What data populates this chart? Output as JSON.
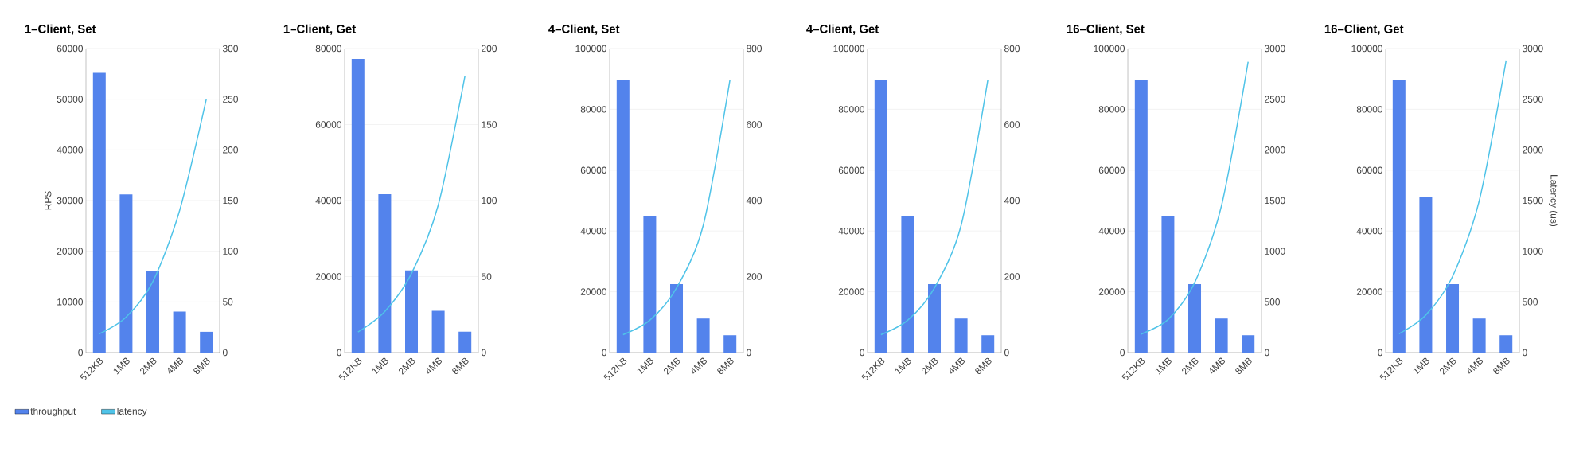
{
  "chart_data": [
    {
      "type": "bar",
      "title": "1–Client, Set",
      "categories": [
        "512KB",
        "1MB",
        "2MB",
        "4MB",
        "8MB"
      ],
      "ylabel": "RPS",
      "grid": "y",
      "legend": "bottom",
      "series": [
        {
          "name": "throughput",
          "color": "#5383ec",
          "values": [
            55200,
            31200,
            16100,
            8100,
            4100
          ]
        },
        {
          "name": "latency",
          "type": "line",
          "axis": "y2",
          "color": "#4fc3e8",
          "values": [
            18.5,
            35,
            70,
            140,
            250
          ]
        }
      ],
      "ylim": [
        0,
        60000
      ],
      "yticks": [
        0,
        10000,
        20000,
        30000,
        40000,
        50000,
        60000
      ],
      "y2lim": [
        0,
        300
      ],
      "y2ticks": [
        0,
        50,
        100,
        150,
        200,
        250,
        300
      ]
    },
    {
      "type": "bar",
      "title": "1–Client, Get",
      "categories": [
        "512KB",
        "1MB",
        "2MB",
        "4MB",
        "8MB"
      ],
      "grid": "y",
      "series": [
        {
          "color": "#5383ec",
          "values": [
            77300,
            41700,
            21600,
            11000,
            5500
          ]
        },
        {
          "type": "line",
          "axis": "y2",
          "color": "#4fc3e8",
          "values": [
            13.5,
            27,
            52,
            97,
            182
          ]
        }
      ],
      "ylim": [
        0,
        80000
      ],
      "yticks": [
        0,
        20000,
        40000,
        60000,
        80000
      ],
      "y2lim": [
        0,
        200
      ],
      "y2ticks": [
        0,
        50,
        100,
        150,
        200
      ]
    },
    {
      "type": "bar",
      "title": "4–Client, Set",
      "categories": [
        "512KB",
        "1MB",
        "2MB",
        "4MB",
        "8MB"
      ],
      "grid": "y",
      "series": [
        {
          "color": "#5383ec",
          "values": [
            89800,
            45000,
            22500,
            11200,
            5700
          ]
        },
        {
          "type": "line",
          "axis": "y2",
          "color": "#4fc3e8",
          "values": [
            47,
            85,
            170,
            335,
            718
          ]
        }
      ],
      "ylim": [
        0,
        100000
      ],
      "yticks": [
        0,
        20000,
        40000,
        60000,
        80000,
        100000
      ],
      "y2lim": [
        0,
        800
      ],
      "y2ticks": [
        0,
        200,
        400,
        600,
        800
      ]
    },
    {
      "type": "bar",
      "title": "4–Client, Get",
      "categories": [
        "512KB",
        "1MB",
        "2MB",
        "4MB",
        "8MB"
      ],
      "grid": "y",
      "series": [
        {
          "color": "#5383ec",
          "values": [
            89500,
            44800,
            22500,
            11200,
            5700
          ]
        },
        {
          "type": "line",
          "axis": "y2",
          "color": "#4fc3e8",
          "values": [
            47,
            85,
            170,
            335,
            718
          ]
        }
      ],
      "ylim": [
        0,
        100000
      ],
      "yticks": [
        0,
        20000,
        40000,
        60000,
        80000,
        100000
      ],
      "y2lim": [
        0,
        800
      ],
      "y2ticks": [
        0,
        200,
        400,
        600,
        800
      ]
    },
    {
      "type": "bar",
      "title": "16–Client, Set",
      "categories": [
        "512KB",
        "1MB",
        "2MB",
        "4MB",
        "8MB"
      ],
      "grid": "y",
      "series": [
        {
          "color": "#5383ec",
          "values": [
            89800,
            45000,
            22500,
            11200,
            5700
          ]
        },
        {
          "type": "line",
          "axis": "y2",
          "color": "#4fc3e8",
          "values": [
            183,
            325,
            690,
            1445,
            2869
          ]
        }
      ],
      "ylim": [
        0,
        100000
      ],
      "yticks": [
        0,
        20000,
        40000,
        60000,
        80000,
        100000
      ],
      "y2lim": [
        0,
        3000
      ],
      "y2ticks": [
        0,
        500,
        1000,
        1500,
        2000,
        2500,
        3000
      ]
    },
    {
      "type": "bar",
      "title": "16–Client, Get",
      "categories": [
        "512KB",
        "1MB",
        "2MB",
        "4MB",
        "8MB"
      ],
      "grid": "y",
      "y2label": "Latency (us)",
      "series": [
        {
          "color": "#5383ec",
          "values": [
            89600,
            51200,
            22500,
            11200,
            5700
          ]
        },
        {
          "type": "line",
          "axis": "y2",
          "color": "#4fc3e8",
          "values": [
            186,
            370,
            750,
            1500,
            2875
          ]
        }
      ],
      "ylim": [
        0,
        100000
      ],
      "yticks": [
        0,
        20000,
        40000,
        60000,
        80000,
        100000
      ],
      "y2lim": [
        0,
        3000
      ],
      "y2ticks": [
        0,
        500,
        1000,
        1500,
        2000,
        2500,
        3000
      ]
    }
  ]
}
